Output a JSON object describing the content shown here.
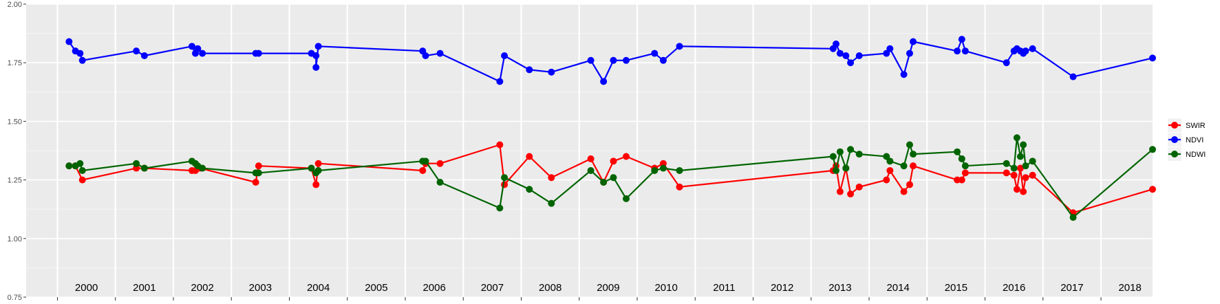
{
  "chart_data": {
    "type": "line",
    "title": "",
    "xlabel": "",
    "ylabel": "",
    "x_range": [
      1999.46,
      2018.89
    ],
    "ylim": [
      0.75,
      2.0
    ],
    "yticks": [
      0.75,
      1.0,
      1.25,
      1.5,
      1.75,
      2.0
    ],
    "ytick_labels": [
      "0.75",
      "1.00",
      "1.25",
      "1.50",
      "1.75",
      "2.00"
    ],
    "year_labels": [
      "2000",
      "2001",
      "2002",
      "2003",
      "2004",
      "2005",
      "2006",
      "2007",
      "2008",
      "2009",
      "2010",
      "2011",
      "2012",
      "2013",
      "2014",
      "2015",
      "2016",
      "2017",
      "2018"
    ],
    "grid": true,
    "panel_background": "#ebebeb",
    "legend_position": "right",
    "series": [
      {
        "name": "SWIR",
        "color": "#ff0000",
        "points": [
          [
            2000.2,
            1.31
          ],
          [
            2000.31,
            1.31
          ],
          [
            2000.43,
            1.25
          ],
          [
            2001.36,
            1.3
          ],
          [
            2001.5,
            1.3
          ],
          [
            2002.32,
            1.29
          ],
          [
            2002.38,
            1.29
          ],
          [
            2002.46,
            1.3
          ],
          [
            2003.42,
            1.24
          ],
          [
            2003.47,
            1.31
          ],
          [
            2004.38,
            1.3
          ],
          [
            2004.46,
            1.23
          ],
          [
            2004.5,
            1.32
          ],
          [
            2006.3,
            1.29
          ],
          [
            2006.35,
            1.32
          ],
          [
            2006.6,
            1.32
          ],
          [
            2007.63,
            1.4
          ],
          [
            2007.71,
            1.23
          ],
          [
            2008.14,
            1.35
          ],
          [
            2008.52,
            1.26
          ],
          [
            2009.2,
            1.34
          ],
          [
            2009.42,
            1.24
          ],
          [
            2009.59,
            1.33
          ],
          [
            2009.81,
            1.35
          ],
          [
            2010.3,
            1.3
          ],
          [
            2010.45,
            1.32
          ],
          [
            2010.73,
            1.22
          ],
          [
            2013.38,
            1.29
          ],
          [
            2013.43,
            1.31
          ],
          [
            2013.5,
            1.2
          ],
          [
            2013.6,
            1.3
          ],
          [
            2013.68,
            1.19
          ],
          [
            2013.83,
            1.22
          ],
          [
            2014.3,
            1.25
          ],
          [
            2014.36,
            1.29
          ],
          [
            2014.6,
            1.2
          ],
          [
            2014.7,
            1.23
          ],
          [
            2014.76,
            1.31
          ],
          [
            2015.52,
            1.25
          ],
          [
            2015.6,
            1.25
          ],
          [
            2015.66,
            1.28
          ],
          [
            2016.37,
            1.28
          ],
          [
            2016.5,
            1.27
          ],
          [
            2016.55,
            1.21
          ],
          [
            2016.61,
            1.3
          ],
          [
            2016.66,
            1.2
          ],
          [
            2016.7,
            1.26
          ],
          [
            2016.82,
            1.27
          ],
          [
            2017.52,
            1.11
          ],
          [
            2018.89,
            1.21
          ]
        ]
      },
      {
        "name": "NDVI",
        "color": "#0000ff",
        "points": [
          [
            2000.2,
            1.84
          ],
          [
            2000.31,
            1.8
          ],
          [
            2000.39,
            1.79
          ],
          [
            2000.43,
            1.76
          ],
          [
            2001.36,
            1.8
          ],
          [
            2001.5,
            1.78
          ],
          [
            2002.32,
            1.82
          ],
          [
            2002.38,
            1.79
          ],
          [
            2002.42,
            1.81
          ],
          [
            2002.5,
            1.79
          ],
          [
            2003.42,
            1.79
          ],
          [
            2003.47,
            1.79
          ],
          [
            2004.38,
            1.79
          ],
          [
            2004.46,
            1.78
          ],
          [
            2004.46,
            1.73
          ],
          [
            2004.5,
            1.82
          ],
          [
            2006.3,
            1.8
          ],
          [
            2006.35,
            1.78
          ],
          [
            2006.6,
            1.79
          ],
          [
            2007.63,
            1.67
          ],
          [
            2007.71,
            1.78
          ],
          [
            2008.14,
            1.72
          ],
          [
            2008.52,
            1.71
          ],
          [
            2009.2,
            1.76
          ],
          [
            2009.42,
            1.67
          ],
          [
            2009.59,
            1.76
          ],
          [
            2009.81,
            1.76
          ],
          [
            2010.3,
            1.79
          ],
          [
            2010.45,
            1.76
          ],
          [
            2010.73,
            1.82
          ],
          [
            2013.38,
            1.81
          ],
          [
            2013.43,
            1.83
          ],
          [
            2013.5,
            1.79
          ],
          [
            2013.6,
            1.78
          ],
          [
            2013.68,
            1.75
          ],
          [
            2013.83,
            1.78
          ],
          [
            2014.3,
            1.79
          ],
          [
            2014.36,
            1.81
          ],
          [
            2014.6,
            1.7
          ],
          [
            2014.7,
            1.79
          ],
          [
            2014.76,
            1.84
          ],
          [
            2015.52,
            1.8
          ],
          [
            2015.6,
            1.85
          ],
          [
            2015.66,
            1.8
          ],
          [
            2016.37,
            1.75
          ],
          [
            2016.5,
            1.8
          ],
          [
            2016.55,
            1.81
          ],
          [
            2016.61,
            1.8
          ],
          [
            2016.66,
            1.79
          ],
          [
            2016.7,
            1.8
          ],
          [
            2016.82,
            1.81
          ],
          [
            2017.52,
            1.69
          ],
          [
            2018.89,
            1.77
          ]
        ]
      },
      {
        "name": "NDWI",
        "color": "#006400",
        "points": [
          [
            2000.2,
            1.31
          ],
          [
            2000.31,
            1.31
          ],
          [
            2000.39,
            1.32
          ],
          [
            2000.43,
            1.29
          ],
          [
            2001.36,
            1.32
          ],
          [
            2001.5,
            1.3
          ],
          [
            2002.32,
            1.33
          ],
          [
            2002.38,
            1.32
          ],
          [
            2002.42,
            1.31
          ],
          [
            2002.5,
            1.3
          ],
          [
            2003.42,
            1.28
          ],
          [
            2003.47,
            1.28
          ],
          [
            2004.38,
            1.3
          ],
          [
            2004.46,
            1.28
          ],
          [
            2004.5,
            1.29
          ],
          [
            2006.3,
            1.33
          ],
          [
            2006.35,
            1.33
          ],
          [
            2006.6,
            1.24
          ],
          [
            2007.63,
            1.13
          ],
          [
            2007.71,
            1.26
          ],
          [
            2008.14,
            1.21
          ],
          [
            2008.52,
            1.15
          ],
          [
            2009.2,
            1.29
          ],
          [
            2009.42,
            1.24
          ],
          [
            2009.59,
            1.26
          ],
          [
            2009.81,
            1.17
          ],
          [
            2010.3,
            1.29
          ],
          [
            2010.45,
            1.3
          ],
          [
            2010.73,
            1.29
          ],
          [
            2013.38,
            1.35
          ],
          [
            2013.43,
            1.29
          ],
          [
            2013.5,
            1.37
          ],
          [
            2013.6,
            1.3
          ],
          [
            2013.68,
            1.38
          ],
          [
            2013.83,
            1.36
          ],
          [
            2014.3,
            1.35
          ],
          [
            2014.36,
            1.33
          ],
          [
            2014.6,
            1.31
          ],
          [
            2014.7,
            1.4
          ],
          [
            2014.76,
            1.36
          ],
          [
            2015.52,
            1.37
          ],
          [
            2015.6,
            1.34
          ],
          [
            2015.66,
            1.31
          ],
          [
            2016.37,
            1.32
          ],
          [
            2016.5,
            1.3
          ],
          [
            2016.55,
            1.43
          ],
          [
            2016.61,
            1.35
          ],
          [
            2016.66,
            1.4
          ],
          [
            2016.7,
            1.31
          ],
          [
            2016.82,
            1.33
          ],
          [
            2017.52,
            1.09
          ],
          [
            2018.89,
            1.38
          ]
        ]
      }
    ]
  }
}
